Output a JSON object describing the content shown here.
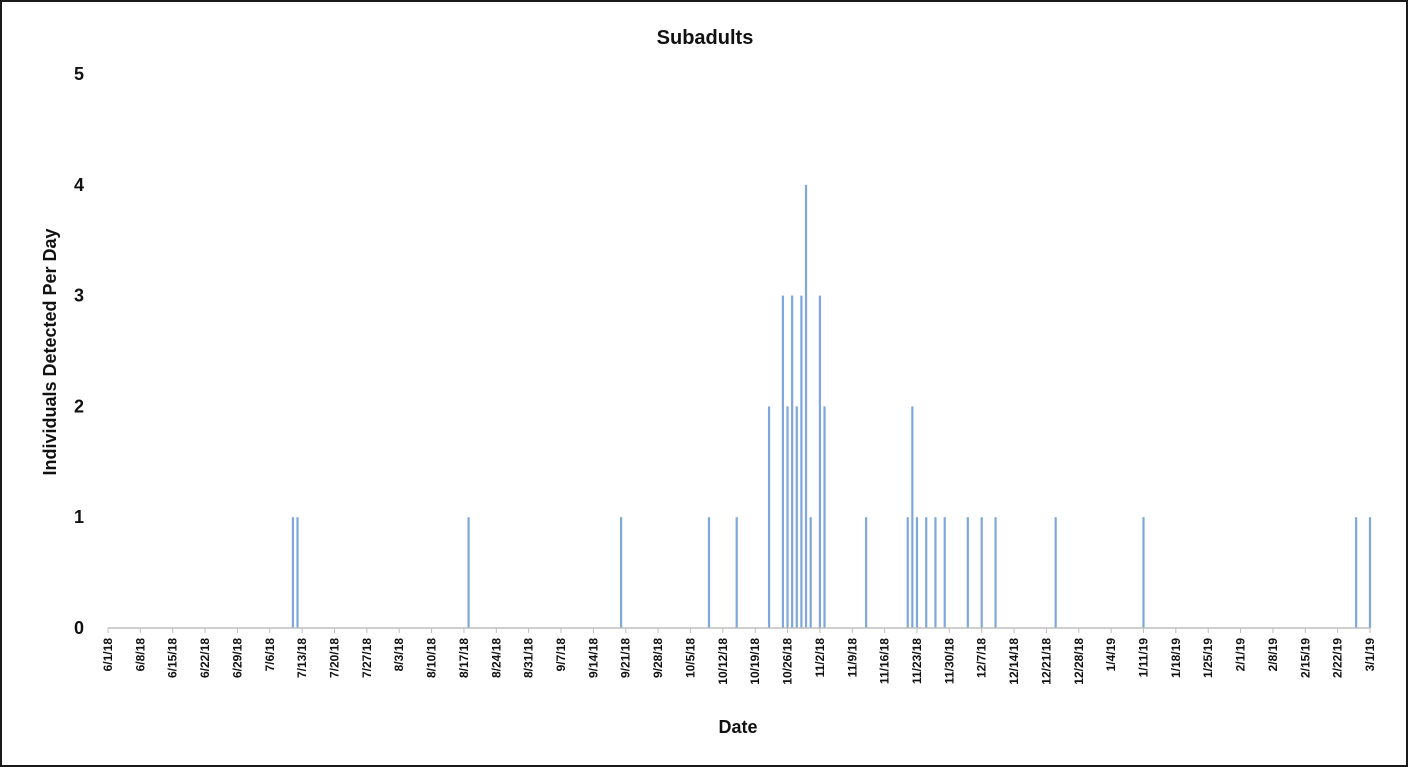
{
  "chart_data": {
    "type": "bar",
    "title": "Subadults",
    "xlabel": "Date",
    "ylabel": "Individuals Detected Per Day",
    "ylim": [
      0,
      5
    ],
    "yticks": [
      0,
      1,
      2,
      3,
      4,
      5
    ],
    "grid": false,
    "legend": "none",
    "bar_color": "#7fa7d9",
    "xlim": [
      "2018-06-01",
      "2019-03-01"
    ],
    "x_tick_labels": [
      "6/1/18",
      "6/8/18",
      "6/15/18",
      "6/22/18",
      "6/29/18",
      "7/6/18",
      "7/13/18",
      "7/20/18",
      "7/27/18",
      "8/3/18",
      "8/10/18",
      "8/17/18",
      "8/24/18",
      "8/31/18",
      "9/7/18",
      "9/14/18",
      "9/21/18",
      "9/28/18",
      "10/5/18",
      "10/12/18",
      "10/19/18",
      "10/26/18",
      "11/2/18",
      "11/9/18",
      "11/16/18",
      "11/23/18",
      "11/30/18",
      "12/7/18",
      "12/14/18",
      "12/21/18",
      "12/28/18",
      "1/4/19",
      "1/11/19",
      "1/18/19",
      "1/25/19",
      "2/1/19",
      "2/8/19",
      "2/15/19",
      "2/22/19",
      "3/1/19"
    ],
    "points": [
      {
        "x": "2018-07-11",
        "y": 1
      },
      {
        "x": "2018-07-12",
        "y": 1
      },
      {
        "x": "2018-08-18",
        "y": 1
      },
      {
        "x": "2018-09-20",
        "y": 1
      },
      {
        "x": "2018-10-09",
        "y": 1
      },
      {
        "x": "2018-10-15",
        "y": 1
      },
      {
        "x": "2018-10-22",
        "y": 2
      },
      {
        "x": "2018-10-25",
        "y": 3
      },
      {
        "x": "2018-10-26",
        "y": 2
      },
      {
        "x": "2018-10-27",
        "y": 3
      },
      {
        "x": "2018-10-28",
        "y": 2
      },
      {
        "x": "2018-10-29",
        "y": 3
      },
      {
        "x": "2018-10-30",
        "y": 4
      },
      {
        "x": "2018-10-31",
        "y": 1
      },
      {
        "x": "2018-11-01",
        "y": 0
      },
      {
        "x": "2018-11-02",
        "y": 3
      },
      {
        "x": "2018-11-03",
        "y": 2
      },
      {
        "x": "2018-11-12",
        "y": 1
      },
      {
        "x": "2018-11-21",
        "y": 1
      },
      {
        "x": "2018-11-22",
        "y": 2
      },
      {
        "x": "2018-11-23",
        "y": 1
      },
      {
        "x": "2018-11-25",
        "y": 1
      },
      {
        "x": "2018-11-27",
        "y": 1
      },
      {
        "x": "2018-11-29",
        "y": 1
      },
      {
        "x": "2018-12-04",
        "y": 1
      },
      {
        "x": "2018-12-07",
        "y": 1
      },
      {
        "x": "2018-12-10",
        "y": 1
      },
      {
        "x": "2018-12-23",
        "y": 1
      },
      {
        "x": "2019-01-11",
        "y": 1
      },
      {
        "x": "2019-02-26",
        "y": 1
      },
      {
        "x": "2019-03-01",
        "y": 1
      }
    ]
  }
}
